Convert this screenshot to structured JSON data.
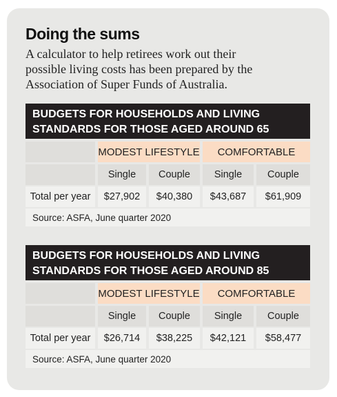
{
  "header": {
    "title": "Doing the sums",
    "intro_lines": [
      "A calculator to help retirees work out their",
      "possible living costs has been prepared by the",
      "Association of Super Funds of Australia."
    ]
  },
  "tables": [
    {
      "title_lines": [
        "BUDGETS FOR HOUSEHOLDS AND LIVING",
        "STANDARDS FOR THOSE AGED AROUND 65"
      ],
      "groups": [
        "MODEST LIFESTYLE",
        "COMFORTABLE"
      ],
      "columns": [
        "Single",
        "Couple",
        "Single",
        "Couple"
      ],
      "row_label": "Total per year",
      "values": [
        "$27,902",
        "$40,380",
        "$43,687",
        "$61,909"
      ],
      "source": "Source: ASFA, June quarter 2020"
    },
    {
      "title_lines": [
        "BUDGETS FOR HOUSEHOLDS AND LIVING",
        "STANDARDS FOR THOSE AGED AROUND 85"
      ],
      "groups": [
        "MODEST LIFESTYLE",
        "COMFORTABLE"
      ],
      "columns": [
        "Single",
        "Couple",
        "Single",
        "Couple"
      ],
      "row_label": "Total per year",
      "values": [
        "$26,714",
        "$38,225",
        "$42,121",
        "$58,477"
      ],
      "source": "Source: ASFA, June quarter 2020"
    }
  ]
}
